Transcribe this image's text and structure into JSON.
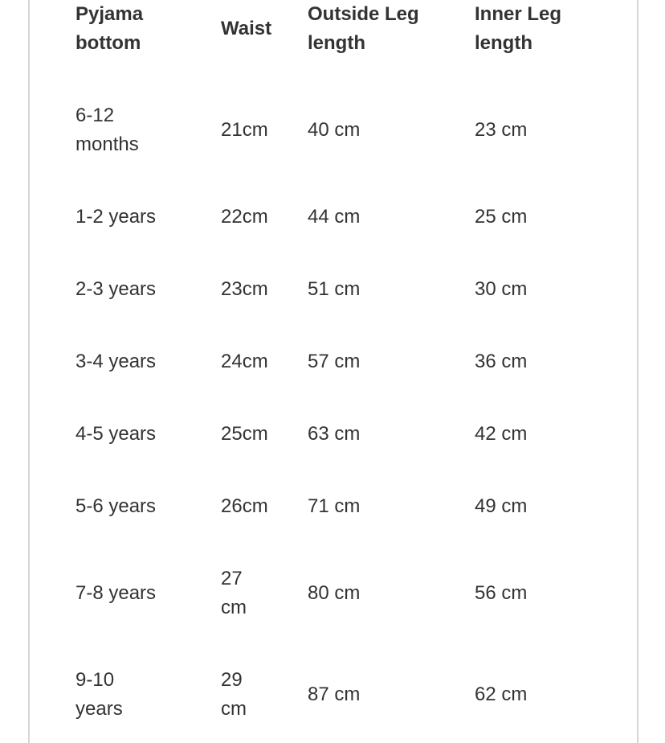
{
  "table": {
    "headers": [
      "Pyjama bottom",
      "Waist",
      "Outside Leg length",
      "Inner Leg length"
    ],
    "rows": [
      [
        "6-12 months",
        "21cm",
        "40 cm",
        "23 cm"
      ],
      [
        "1-2 years",
        "22cm",
        "44 cm",
        "25 cm"
      ],
      [
        "2-3 years",
        "23cm",
        "51 cm",
        "30 cm"
      ],
      [
        "3-4 years",
        "24cm",
        "57 cm",
        "36 cm"
      ],
      [
        "4-5 years",
        "25cm",
        "63 cm",
        "42 cm"
      ],
      [
        "5-6 years",
        "26cm",
        "71 cm",
        "49 cm"
      ],
      [
        "7-8 years",
        "27 cm",
        "80 cm",
        "56 cm"
      ],
      [
        "9-10 years",
        "29 cm",
        "87 cm",
        "62 cm"
      ]
    ]
  }
}
